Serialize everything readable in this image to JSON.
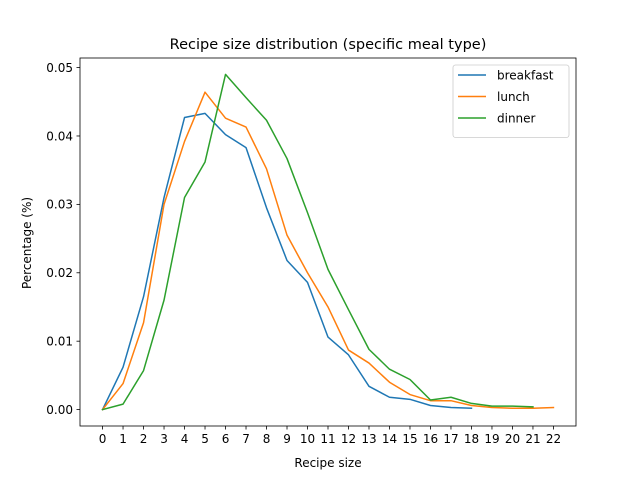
{
  "chart_data": {
    "type": "line",
    "title": "Recipe size distribution (specific meal type)",
    "xlabel": "Recipe size",
    "ylabel": "Percentage (%)",
    "xlim": [
      -1.1,
      23.1
    ],
    "ylim": [
      -0.0024,
      0.0514
    ],
    "x_ticks": [
      0,
      1,
      2,
      3,
      4,
      5,
      6,
      7,
      8,
      9,
      10,
      11,
      12,
      13,
      14,
      15,
      16,
      17,
      18,
      19,
      20,
      21,
      22
    ],
    "x_tick_labels": [
      "0",
      "1",
      "2",
      "3",
      "4",
      "5",
      "6",
      "7",
      "8",
      "9",
      "10",
      "11",
      "12",
      "13",
      "14",
      "15",
      "16",
      "17",
      "18",
      "19",
      "20",
      "21",
      "22"
    ],
    "y_ticks": [
      0.0,
      0.01,
      0.02,
      0.03,
      0.04,
      0.05
    ],
    "y_tick_labels": [
      "0.00",
      "0.01",
      "0.02",
      "0.03",
      "0.04",
      "0.05"
    ],
    "grid": false,
    "legend_position": "top-right",
    "series": [
      {
        "name": "breakfast",
        "color": "#1f77b4",
        "x": [
          0,
          1,
          2,
          3,
          4,
          5,
          6,
          7,
          8,
          9,
          10,
          11,
          12,
          13,
          14,
          15,
          16,
          17,
          18
        ],
        "values": [
          0.0,
          0.0062,
          0.0165,
          0.031,
          0.0427,
          0.0433,
          0.0402,
          0.0383,
          0.0295,
          0.0218,
          0.0186,
          0.0106,
          0.008,
          0.0034,
          0.0018,
          0.0015,
          0.0006,
          0.0003,
          0.0002
        ]
      },
      {
        "name": "lunch",
        "color": "#ff7f0e",
        "x": [
          0,
          1,
          2,
          3,
          4,
          5,
          6,
          7,
          8,
          9,
          10,
          11,
          12,
          13,
          14,
          15,
          16,
          17,
          18,
          19,
          20,
          21,
          22
        ],
        "values": [
          0.0,
          0.0038,
          0.0127,
          0.03,
          0.0392,
          0.0464,
          0.0426,
          0.0413,
          0.0352,
          0.0255,
          0.02,
          0.015,
          0.0087,
          0.0068,
          0.004,
          0.0022,
          0.0013,
          0.0013,
          0.0006,
          0.0003,
          0.0002,
          0.0002,
          0.0003
        ]
      },
      {
        "name": "dinner",
        "color": "#2ca02c",
        "x": [
          0,
          1,
          2,
          3,
          4,
          5,
          6,
          7,
          8,
          9,
          10,
          11,
          12,
          13,
          14,
          15,
          16,
          17,
          18,
          19,
          20,
          21
        ],
        "values": [
          0.0,
          0.0008,
          0.0057,
          0.016,
          0.031,
          0.0362,
          0.049,
          0.0456,
          0.0423,
          0.0367,
          0.0288,
          0.0205,
          0.0146,
          0.0088,
          0.0059,
          0.0044,
          0.0014,
          0.0018,
          0.0009,
          0.0005,
          0.0005,
          0.0004
        ]
      }
    ]
  }
}
